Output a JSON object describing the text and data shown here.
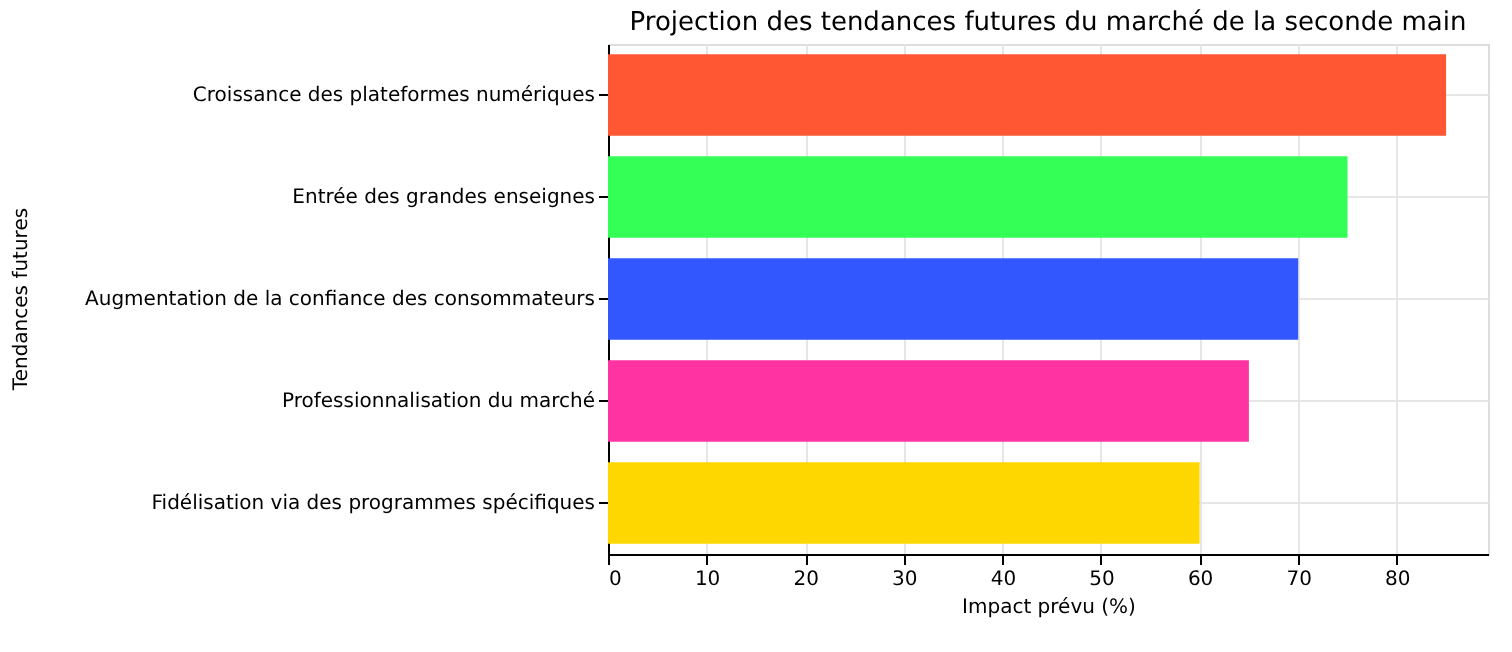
{
  "chart_data": {
    "type": "bar",
    "orientation": "horizontal",
    "title": "Projection des tendances futures du marché de la seconde main",
    "xlabel": "Impact prévu (%)",
    "ylabel": "Tendances futures",
    "categories": [
      "Croissance des plateformes numériques",
      "Entrée des grandes enseignes",
      "Augmentation de la confiance des consommateurs",
      "Professionnalisation du marché",
      "Fidélisation via des programmes spécifiques"
    ],
    "values": [
      85,
      75,
      70,
      65,
      60
    ],
    "colors": [
      "#ff5733",
      "#33ff57",
      "#3357ff",
      "#ff33a1",
      "#ffd700"
    ],
    "xlim": [
      0,
      89.25
    ],
    "xticks": [
      0,
      10,
      20,
      30,
      40,
      50,
      60,
      70,
      80
    ],
    "grid": true
  }
}
